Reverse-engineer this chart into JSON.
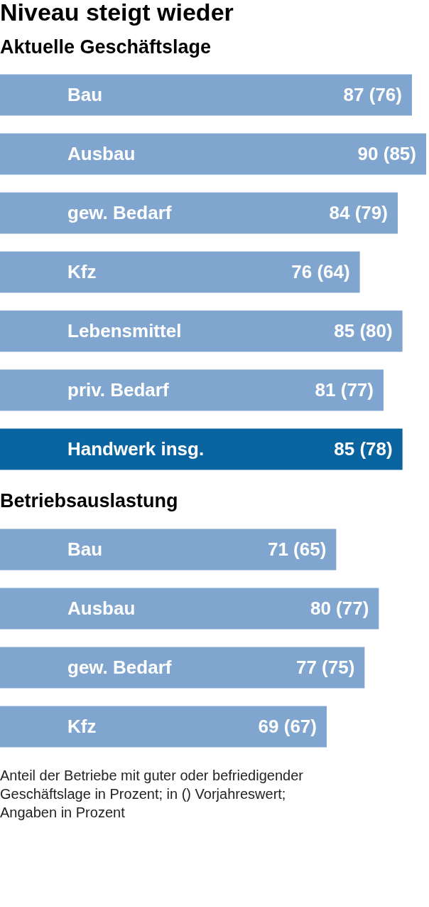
{
  "chart_data": [
    {
      "type": "bar",
      "orientation": "horizontal",
      "title": "Niveau steigt wieder",
      "subtitle": "Aktuelle Geschäftslage",
      "categories": [
        "Bau",
        "Ausbau",
        "gew. Bedarf",
        "Kfz",
        "Lebensmittel",
        "priv. Bedarf",
        "Handwerk insg."
      ],
      "values": [
        87,
        90,
        84,
        76,
        85,
        81,
        85
      ],
      "value_labels": [
        "87  (76)",
        "90  (85)",
        "84  (79)",
        "76  (64)",
        "85  (80)",
        "81  (77)",
        "85  (78)"
      ],
      "colors": [
        "#80a6cf",
        "#80a6cf",
        "#80a6cf",
        "#80a6cf",
        "#80a6cf",
        "#80a6cf",
        "#0a64a0"
      ],
      "xlim": [
        0,
        90
      ],
      "tick_labels": false
    },
    {
      "type": "bar",
      "orientation": "horizontal",
      "title": "Betriebsauslastung",
      "categories": [
        "Bau",
        "Ausbau",
        "gew. Bedarf",
        "Kfz"
      ],
      "values": [
        71,
        80,
        77,
        69
      ],
      "value_labels": [
        "71  (65)",
        "80  (77)",
        "77 (75)",
        "69 (67)"
      ],
      "colors": [
        "#80a6cf",
        "#80a6cf",
        "#80a6cf",
        "#80a6cf"
      ],
      "xlim": [
        0,
        90
      ],
      "tick_labels": false,
      "annotations": [
        "Anteil der Betriebe mit guter oder befriedigender Geschäftslage in Prozent; in () Vorjahreswert; Angaben in Prozent"
      ]
    }
  ]
}
